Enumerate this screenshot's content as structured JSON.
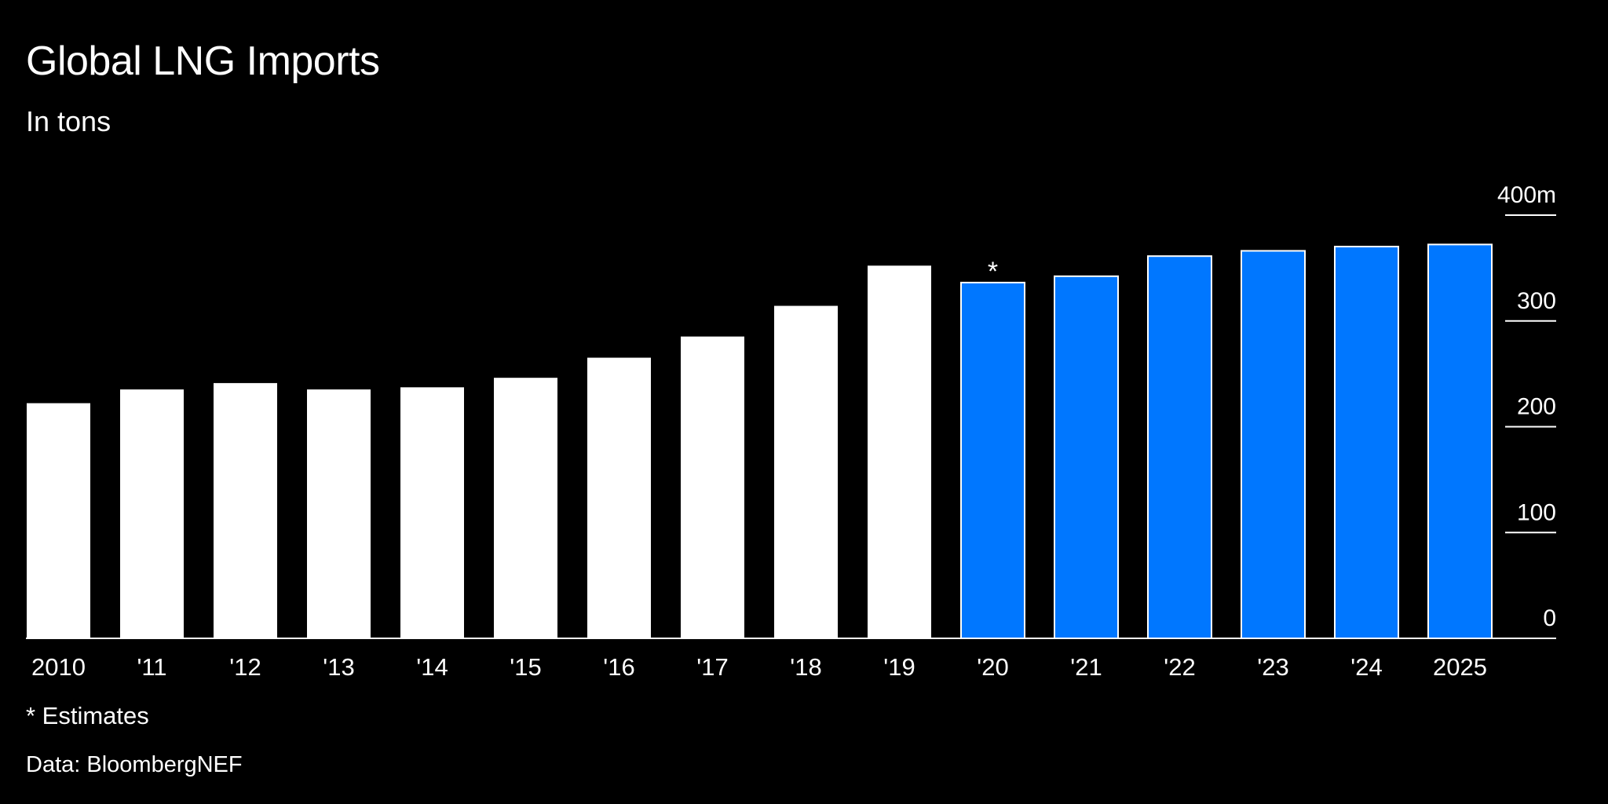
{
  "title": "Global LNG Imports",
  "subtitle": "In tons",
  "footnote": "* Estimates",
  "source": "Data: BloombergNEF",
  "colors": {
    "actual": "#ffffff",
    "estimate": "#0077ff",
    "background": "#000000"
  },
  "chart_data": {
    "type": "bar",
    "title": "Global LNG Imports",
    "subtitle": "In tons",
    "xlabel": "",
    "ylabel": "",
    "ylim": [
      0,
      400
    ],
    "y_ticks": [
      "0",
      "100",
      "200",
      "300",
      "400m"
    ],
    "y_tick_values": [
      0,
      100,
      200,
      300,
      400
    ],
    "y_axis_position": "right",
    "grid": false,
    "categories": [
      "2010",
      "'11",
      "'12",
      "'13",
      "'14",
      "'15",
      "'16",
      "'17",
      "'18",
      "'19",
      "'20",
      "'21",
      "'22",
      "'23",
      "'24",
      "2025"
    ],
    "values": [
      223,
      236,
      242,
      236,
      238,
      247,
      266,
      286,
      315,
      353,
      337,
      343,
      362,
      367,
      371,
      373
    ],
    "estimate_from_index": 10,
    "annotations": [
      {
        "category": "'20",
        "text": "*"
      }
    ]
  }
}
